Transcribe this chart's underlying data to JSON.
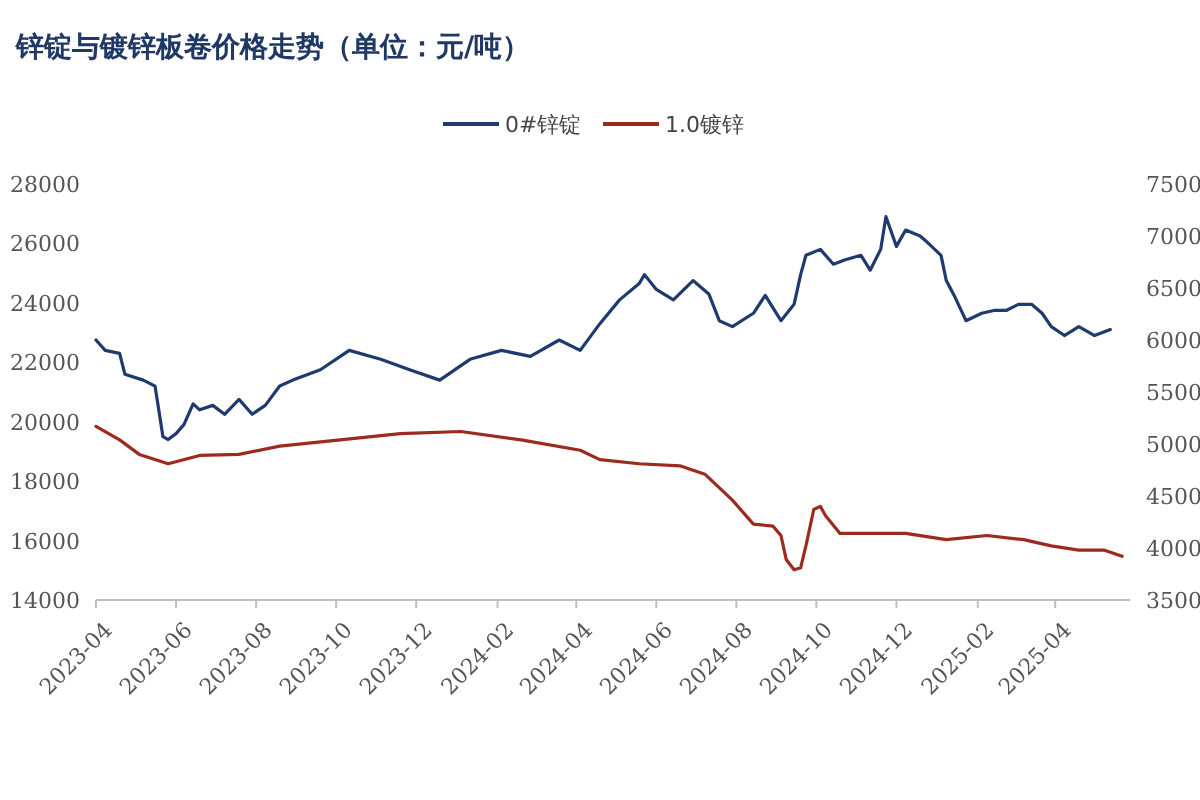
{
  "chart_data": {
    "type": "line",
    "title": "锌锭与镀锌板卷价格走势（单位：元/吨）",
    "xlim": [
      "2023-04",
      "2025-05-28"
    ],
    "xticks": [
      "2023-04",
      "2023-06",
      "2023-08",
      "2023-10",
      "2023-12",
      "2024-02",
      "2024-04",
      "2024-06",
      "2024-08",
      "2024-10",
      "2024-12",
      "2025-02",
      "2025-04"
    ],
    "ylim": [
      14000,
      28000
    ],
    "yticks": [
      14000,
      16000,
      18000,
      20000,
      22000,
      24000,
      26000,
      28000
    ],
    "y2lim": [
      3500,
      7500
    ],
    "y2ticks": [
      3500,
      4000,
      4500,
      5000,
      5500,
      6000,
      6500,
      7000,
      7500
    ],
    "legend": "top",
    "series": [
      {
        "name": "0#锌锭",
        "color": "#1f3a6e",
        "x": [
          "2023-04-01",
          "2023-04-08",
          "2023-04-19",
          "2023-04-23",
          "2023-05-07",
          "2023-05-16",
          "2023-05-22",
          "2023-05-26",
          "2023-06-01",
          "2023-06-07",
          "2023-06-14",
          "2023-06-19",
          "2023-06-29",
          "2023-07-08",
          "2023-07-19",
          "2023-07-29",
          "2023-08-08",
          "2023-08-19",
          "2023-08-29",
          "2023-09-19",
          "2023-10-11",
          "2023-11-04",
          "2023-11-26",
          "2023-12-19",
          "2024-01-11",
          "2024-02-04",
          "2024-02-26",
          "2024-03-19",
          "2024-04-04",
          "2024-04-19",
          "2024-05-04",
          "2024-05-19",
          "2024-05-23",
          "2024-06-01",
          "2024-06-14",
          "2024-06-29",
          "2024-07-11",
          "2024-07-19",
          "2024-07-29",
          "2024-08-14",
          "2024-08-23",
          "2024-09-04",
          "2024-09-14",
          "2024-09-19",
          "2024-09-23",
          "2024-10-04",
          "2024-10-14",
          "2024-10-23",
          "2024-11-04",
          "2024-11-11",
          "2024-11-19",
          "2024-11-23",
          "2024-12-01",
          "2024-12-08",
          "2024-12-19",
          "2024-12-23",
          "2025-01-04",
          "2025-01-08",
          "2025-01-14",
          "2025-01-23",
          "2025-02-04",
          "2025-02-14",
          "2025-02-23",
          "2025-03-04",
          "2025-03-14",
          "2025-03-22",
          "2025-03-29",
          "2025-04-08",
          "2025-04-19",
          "2025-05-01",
          "2025-05-13"
        ],
        "values": [
          22750,
          22400,
          22300,
          21600,
          21400,
          21200,
          19500,
          19400,
          19600,
          19900,
          20600,
          20400,
          20550,
          20250,
          20750,
          20250,
          20550,
          21200,
          21400,
          21750,
          22400,
          22100,
          21750,
          21400,
          22100,
          22400,
          22200,
          22750,
          22400,
          23300,
          24100,
          24650,
          24950,
          24450,
          24100,
          24750,
          24300,
          23400,
          23200,
          23650,
          24250,
          23400,
          23950,
          24950,
          25600,
          25800,
          25300,
          25450,
          25600,
          25100,
          25800,
          26900,
          25900,
          26450,
          26250,
          26100,
          25600,
          24750,
          24250,
          23400,
          23650,
          23750,
          23750,
          23950,
          23950,
          23650,
          23200,
          22900,
          23200,
          22900,
          23100
        ]
      },
      {
        "name": "1.0镀锌",
        "color": "#9c2a1e",
        "axis": "y2",
        "x": [
          "2023-04-01",
          "2023-04-19",
          "2023-05-04",
          "2023-05-26",
          "2023-06-19",
          "2023-07-19",
          "2023-08-19",
          "2023-10-04",
          "2023-11-19",
          "2024-01-04",
          "2024-02-19",
          "2024-04-04",
          "2024-04-19",
          "2024-05-19",
          "2024-06-19",
          "2024-07-08",
          "2024-07-29",
          "2024-08-14",
          "2024-08-29",
          "2024-09-04",
          "2024-09-08",
          "2024-09-14",
          "2024-09-19",
          "2024-09-23",
          "2024-09-29",
          "2024-10-04",
          "2024-10-08",
          "2024-10-19",
          "2024-11-08",
          "2024-12-08",
          "2025-01-08",
          "2025-02-08",
          "2025-03-08",
          "2025-03-29",
          "2025-04-19",
          "2025-05-08",
          "2025-05-22"
        ],
        "values": [
          5170,
          5040,
          4900,
          4810,
          4890,
          4900,
          4980,
          5040,
          5100,
          5120,
          5040,
          4940,
          4850,
          4810,
          4790,
          4710,
          4460,
          4230,
          4210,
          4120,
          3890,
          3790,
          3810,
          4020,
          4370,
          4400,
          4310,
          4140,
          4140,
          4140,
          4080,
          4120,
          4080,
          4020,
          3980,
          3980,
          3920
        ]
      }
    ]
  }
}
